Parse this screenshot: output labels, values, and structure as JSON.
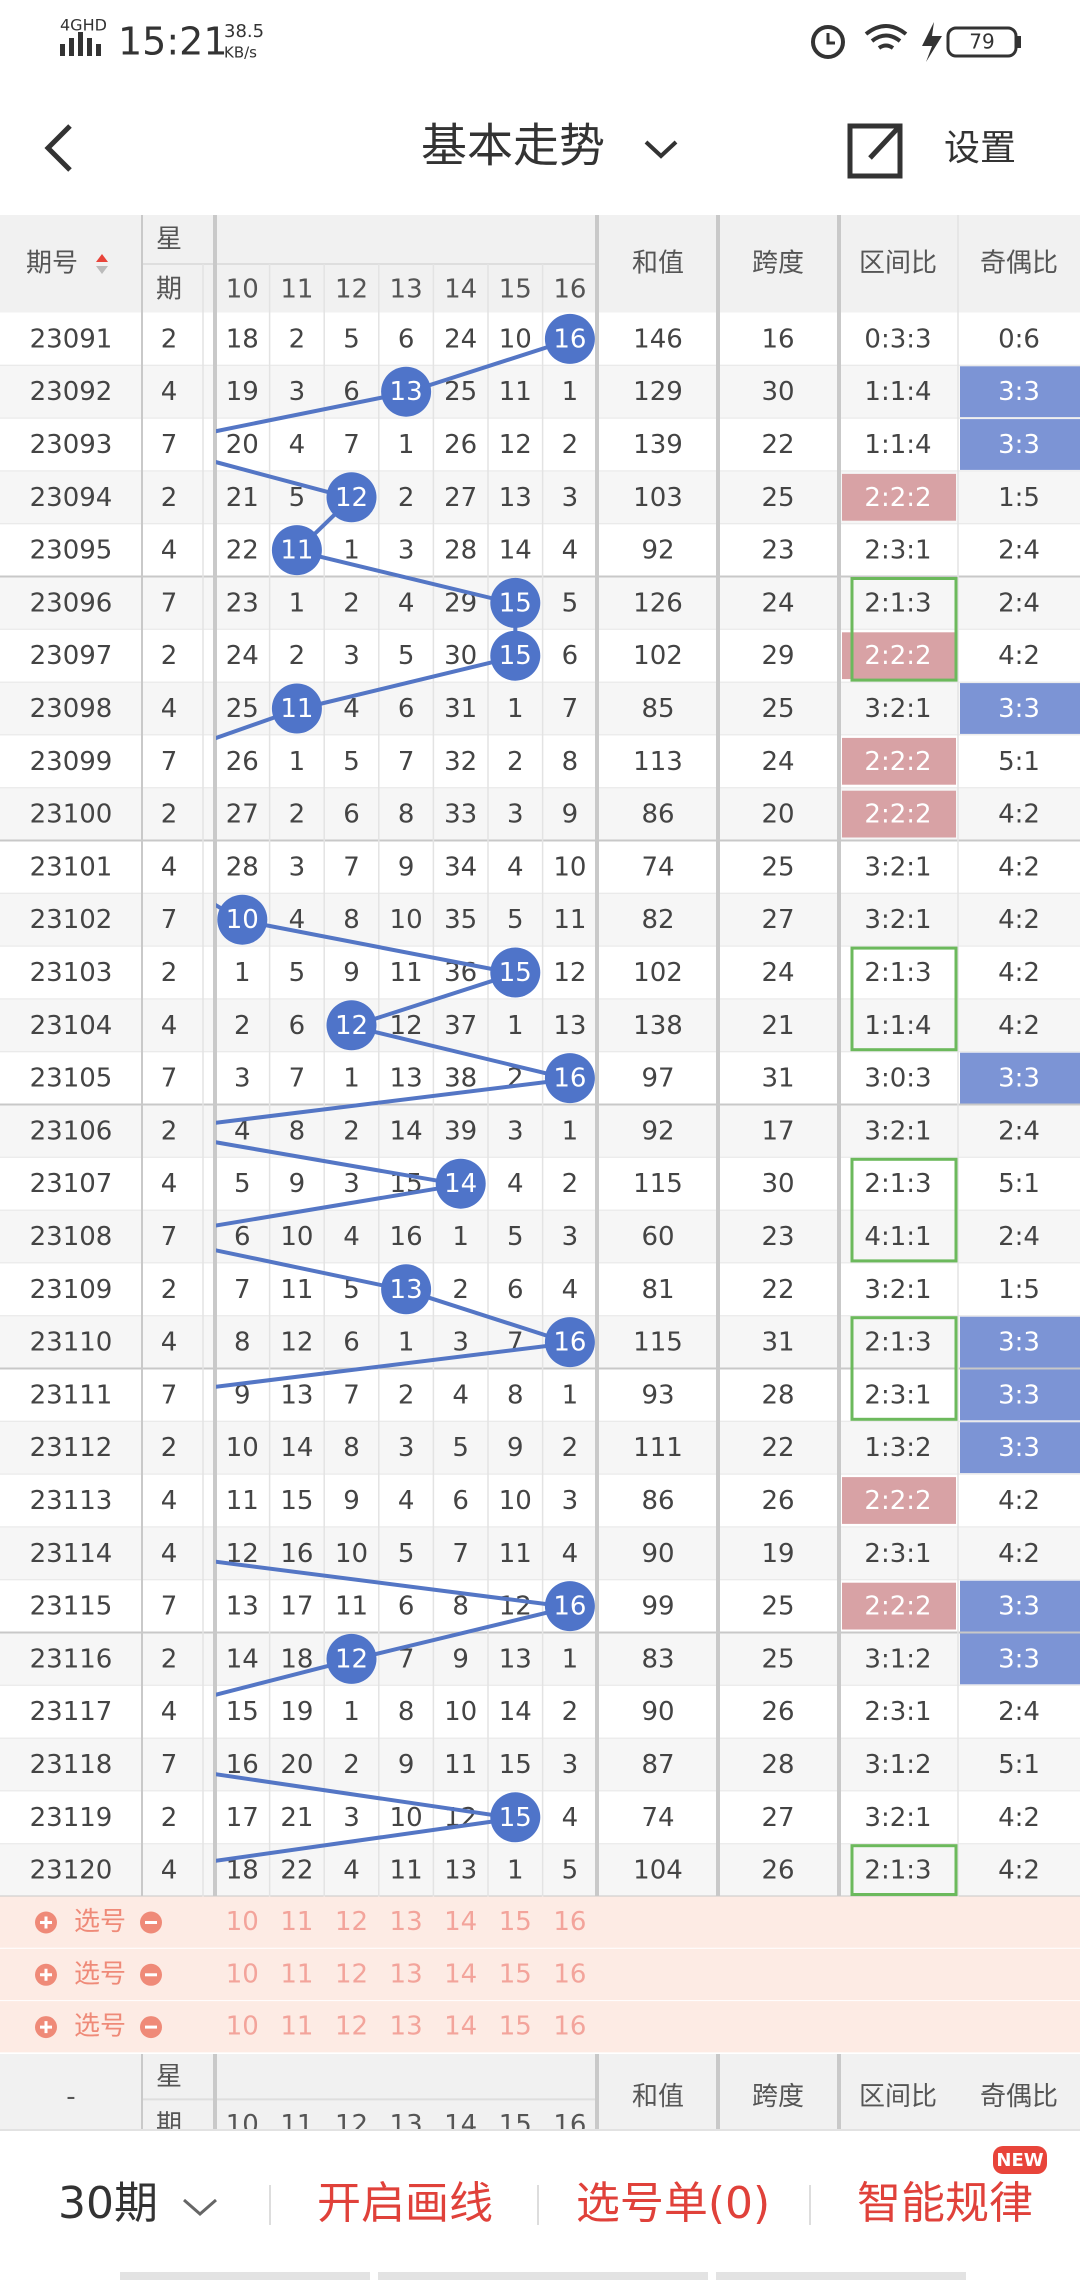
{
  "status_bar": {
    "network": "4GHD",
    "time": "15:21",
    "speed": "38.5",
    "speed_unit": "KB/s",
    "battery": "79"
  },
  "header": {
    "title": "基本走势",
    "settings": "设置"
  },
  "table": {
    "columns": {
      "period": "期号",
      "weekday": [
        "星",
        "期"
      ],
      "numbers": [
        10,
        11,
        12,
        13,
        14,
        15,
        16
      ],
      "sum": "和值",
      "span": "跨度",
      "zone": "区间比",
      "odd_even": "奇偶比"
    },
    "rows": [
      {
        "period": "23091",
        "weekday": 2,
        "cells": [
          18,
          2,
          5,
          6,
          24,
          10,
          {
            "value": 16,
            "hit": true
          }
        ],
        "sum": 146,
        "span": 16,
        "zone": "0:3:3",
        "oe": "0:6"
      },
      {
        "period": "23092",
        "weekday": 4,
        "cells": [
          19,
          3,
          6,
          {
            "value": 13,
            "hit": true
          },
          25,
          11,
          1
        ],
        "sum": 129,
        "span": 30,
        "zone": "1:1:4",
        "oe": {
          "value": "3:3",
          "fill": "#7c94d5"
        }
      },
      {
        "period": "23093",
        "weekday": 7,
        "cells": [
          20,
          4,
          7,
          1,
          26,
          12,
          2
        ],
        "sum": 139,
        "span": 22,
        "zone": "1:1:4",
        "oe": {
          "value": "3:3",
          "fill": "#7c94d5"
        }
      },
      {
        "period": "23094",
        "weekday": 2,
        "cells": [
          21,
          5,
          {
            "value": 12,
            "hit": true
          },
          2,
          27,
          13,
          3
        ],
        "sum": 103,
        "span": 25,
        "zone": {
          "value": "2:2:2",
          "fill": "#d8a2a5"
        },
        "oe": "1:5"
      },
      {
        "period": "23095",
        "weekday": 4,
        "cells": [
          22,
          {
            "value": 11,
            "hit": true
          },
          1,
          3,
          28,
          14,
          4
        ],
        "sum": 92,
        "span": 23,
        "zone": "2:3:1",
        "oe": "2:4"
      },
      {
        "period": "23096",
        "weekday": 7,
        "cells": [
          23,
          1,
          2,
          4,
          29,
          {
            "value": 15,
            "hit": true
          },
          5
        ],
        "sum": 126,
        "span": 24,
        "zone": {
          "value": "2:1:3",
          "box": true
        },
        "oe": "2:4"
      },
      {
        "period": "23097",
        "weekday": 2,
        "cells": [
          24,
          2,
          3,
          5,
          30,
          {
            "value": 15,
            "hit": true
          },
          6
        ],
        "sum": 102,
        "span": 29,
        "zone": {
          "value": "2:2:2",
          "fill": "#d8a2a5",
          "box": true
        },
        "oe": "4:2"
      },
      {
        "period": "23098",
        "weekday": 4,
        "cells": [
          25,
          {
            "value": 11,
            "hit": true
          },
          4,
          6,
          31,
          1,
          7
        ],
        "sum": 85,
        "span": 25,
        "zone": "3:2:1",
        "oe": {
          "value": "3:3",
          "fill": "#7c94d5"
        }
      },
      {
        "period": "23099",
        "weekday": 7,
        "cells": [
          26,
          1,
          5,
          7,
          32,
          2,
          8
        ],
        "sum": 113,
        "span": 24,
        "zone": {
          "value": "2:2:2",
          "fill": "#d8a2a5"
        },
        "oe": "5:1"
      },
      {
        "period": "23100",
        "weekday": 2,
        "cells": [
          27,
          2,
          6,
          8,
          33,
          3,
          9
        ],
        "sum": 86,
        "span": 20,
        "zone": {
          "value": "2:2:2",
          "fill": "#d8a2a5"
        },
        "oe": "4:2"
      },
      {
        "period": "23101",
        "weekday": 4,
        "cells": [
          28,
          3,
          7,
          9,
          34,
          4,
          10
        ],
        "sum": 74,
        "span": 25,
        "zone": "3:2:1",
        "oe": "4:2"
      },
      {
        "period": "23102",
        "weekday": 7,
        "cells": [
          {
            "value": 10,
            "hit": true
          },
          4,
          8,
          10,
          35,
          5,
          11
        ],
        "sum": 82,
        "span": 27,
        "zone": "3:2:1",
        "oe": "4:2"
      },
      {
        "period": "23103",
        "weekday": 2,
        "cells": [
          1,
          5,
          9,
          11,
          36,
          {
            "value": 15,
            "hit": true
          },
          12
        ],
        "sum": 102,
        "span": 24,
        "zone": {
          "value": "2:1:3",
          "box": true
        },
        "oe": "4:2"
      },
      {
        "period": "23104",
        "weekday": 4,
        "cells": [
          2,
          6,
          {
            "value": 12,
            "hit": true
          },
          12,
          37,
          1,
          13
        ],
        "sum": 138,
        "span": 21,
        "zone": {
          "value": "1:1:4",
          "box": true
        },
        "oe": "4:2"
      },
      {
        "period": "23105",
        "weekday": 7,
        "cells": [
          3,
          7,
          1,
          13,
          38,
          2,
          {
            "value": 16,
            "hit": true
          }
        ],
        "sum": 97,
        "span": 31,
        "zone": "3:0:3",
        "oe": {
          "value": "3:3",
          "fill": "#7c94d5"
        }
      },
      {
        "period": "23106",
        "weekday": 2,
        "cells": [
          4,
          8,
          2,
          14,
          39,
          3,
          1
        ],
        "sum": 92,
        "span": 17,
        "zone": "3:2:1",
        "oe": "2:4"
      },
      {
        "period": "23107",
        "weekday": 4,
        "cells": [
          5,
          9,
          3,
          15,
          {
            "value": 14,
            "hit": true
          },
          4,
          2
        ],
        "sum": 115,
        "span": 30,
        "zone": {
          "value": "2:1:3",
          "box": true
        },
        "oe": "5:1"
      },
      {
        "period": "23108",
        "weekday": 7,
        "cells": [
          6,
          10,
          4,
          16,
          1,
          5,
          3
        ],
        "sum": 60,
        "span": 23,
        "zone": {
          "value": "4:1:1",
          "box": true
        },
        "oe": "2:4"
      },
      {
        "period": "23109",
        "weekday": 2,
        "cells": [
          7,
          11,
          5,
          {
            "value": 13,
            "hit": true
          },
          2,
          6,
          4
        ],
        "sum": 81,
        "span": 22,
        "zone": "3:2:1",
        "oe": "1:5"
      },
      {
        "period": "23110",
        "weekday": 4,
        "cells": [
          8,
          12,
          6,
          1,
          3,
          7,
          {
            "value": 16,
            "hit": true
          }
        ],
        "sum": 115,
        "span": 31,
        "zone": {
          "value": "2:1:3",
          "box": true
        },
        "oe": {
          "value": "3:3",
          "fill": "#7c94d5"
        }
      },
      {
        "period": "23111",
        "weekday": 7,
        "cells": [
          9,
          13,
          7,
          2,
          4,
          8,
          1
        ],
        "sum": 93,
        "span": 28,
        "zone": {
          "value": "2:3:1",
          "box": true
        },
        "oe": {
          "value": "3:3",
          "fill": "#7c94d5"
        }
      },
      {
        "period": "23112",
        "weekday": 2,
        "cells": [
          10,
          14,
          8,
          3,
          5,
          9,
          2
        ],
        "sum": 111,
        "span": 22,
        "zone": "1:3:2",
        "oe": {
          "value": "3:3",
          "fill": "#7c94d5"
        }
      },
      {
        "period": "23113",
        "weekday": 4,
        "cells": [
          11,
          15,
          9,
          4,
          6,
          10,
          3
        ],
        "sum": 86,
        "span": 26,
        "zone": {
          "value": "2:2:2",
          "fill": "#d8a2a5"
        },
        "oe": "4:2"
      },
      {
        "period": "23114",
        "weekday": 4,
        "cells": [
          12,
          16,
          10,
          5,
          7,
          11,
          4
        ],
        "sum": 90,
        "span": 19,
        "zone": "2:3:1",
        "oe": "4:2"
      },
      {
        "period": "23115",
        "weekday": 7,
        "cells": [
          13,
          17,
          11,
          6,
          8,
          12,
          {
            "value": 16,
            "hit": true
          }
        ],
        "sum": 99,
        "span": 25,
        "zone": {
          "value": "2:2:2",
          "fill": "#d8a2a5"
        },
        "oe": {
          "value": "3:3",
          "fill": "#7c94d5"
        }
      },
      {
        "period": "23116",
        "weekday": 2,
        "cells": [
          14,
          18,
          {
            "value": 12,
            "hit": true
          },
          7,
          9,
          13,
          1
        ],
        "sum": 83,
        "span": 25,
        "zone": "3:1:2",
        "oe": {
          "value": "3:3",
          "fill": "#7c94d5"
        }
      },
      {
        "period": "23117",
        "weekday": 4,
        "cells": [
          15,
          19,
          1,
          8,
          10,
          14,
          2
        ],
        "sum": 90,
        "span": 26,
        "zone": "2:3:1",
        "oe": "2:4"
      },
      {
        "period": "23118",
        "weekday": 7,
        "cells": [
          16,
          20,
          2,
          9,
          11,
          15,
          3
        ],
        "sum": 87,
        "span": 28,
        "zone": "3:1:2",
        "oe": "5:1"
      },
      {
        "period": "23119",
        "weekday": 2,
        "cells": [
          17,
          21,
          3,
          10,
          12,
          {
            "value": 15,
            "hit": true
          },
          4
        ],
        "sum": 74,
        "span": 27,
        "zone": "3:2:1",
        "oe": "4:2"
      },
      {
        "period": "23120",
        "weekday": 4,
        "cells": [
          18,
          22,
          4,
          11,
          13,
          1,
          5
        ],
        "sum": 104,
        "span": 26,
        "zone": {
          "value": "2:1:3",
          "box": true
        },
        "oe": "4:2"
      }
    ],
    "select_rows": [
      "选号",
      "选号",
      "选号"
    ],
    "footer_period": "-"
  },
  "bottom_bar": {
    "periods": "30期",
    "draw_lines": "开启画线",
    "selection": "选号单(0)",
    "smart": "智能规律",
    "badge": "NEW"
  }
}
